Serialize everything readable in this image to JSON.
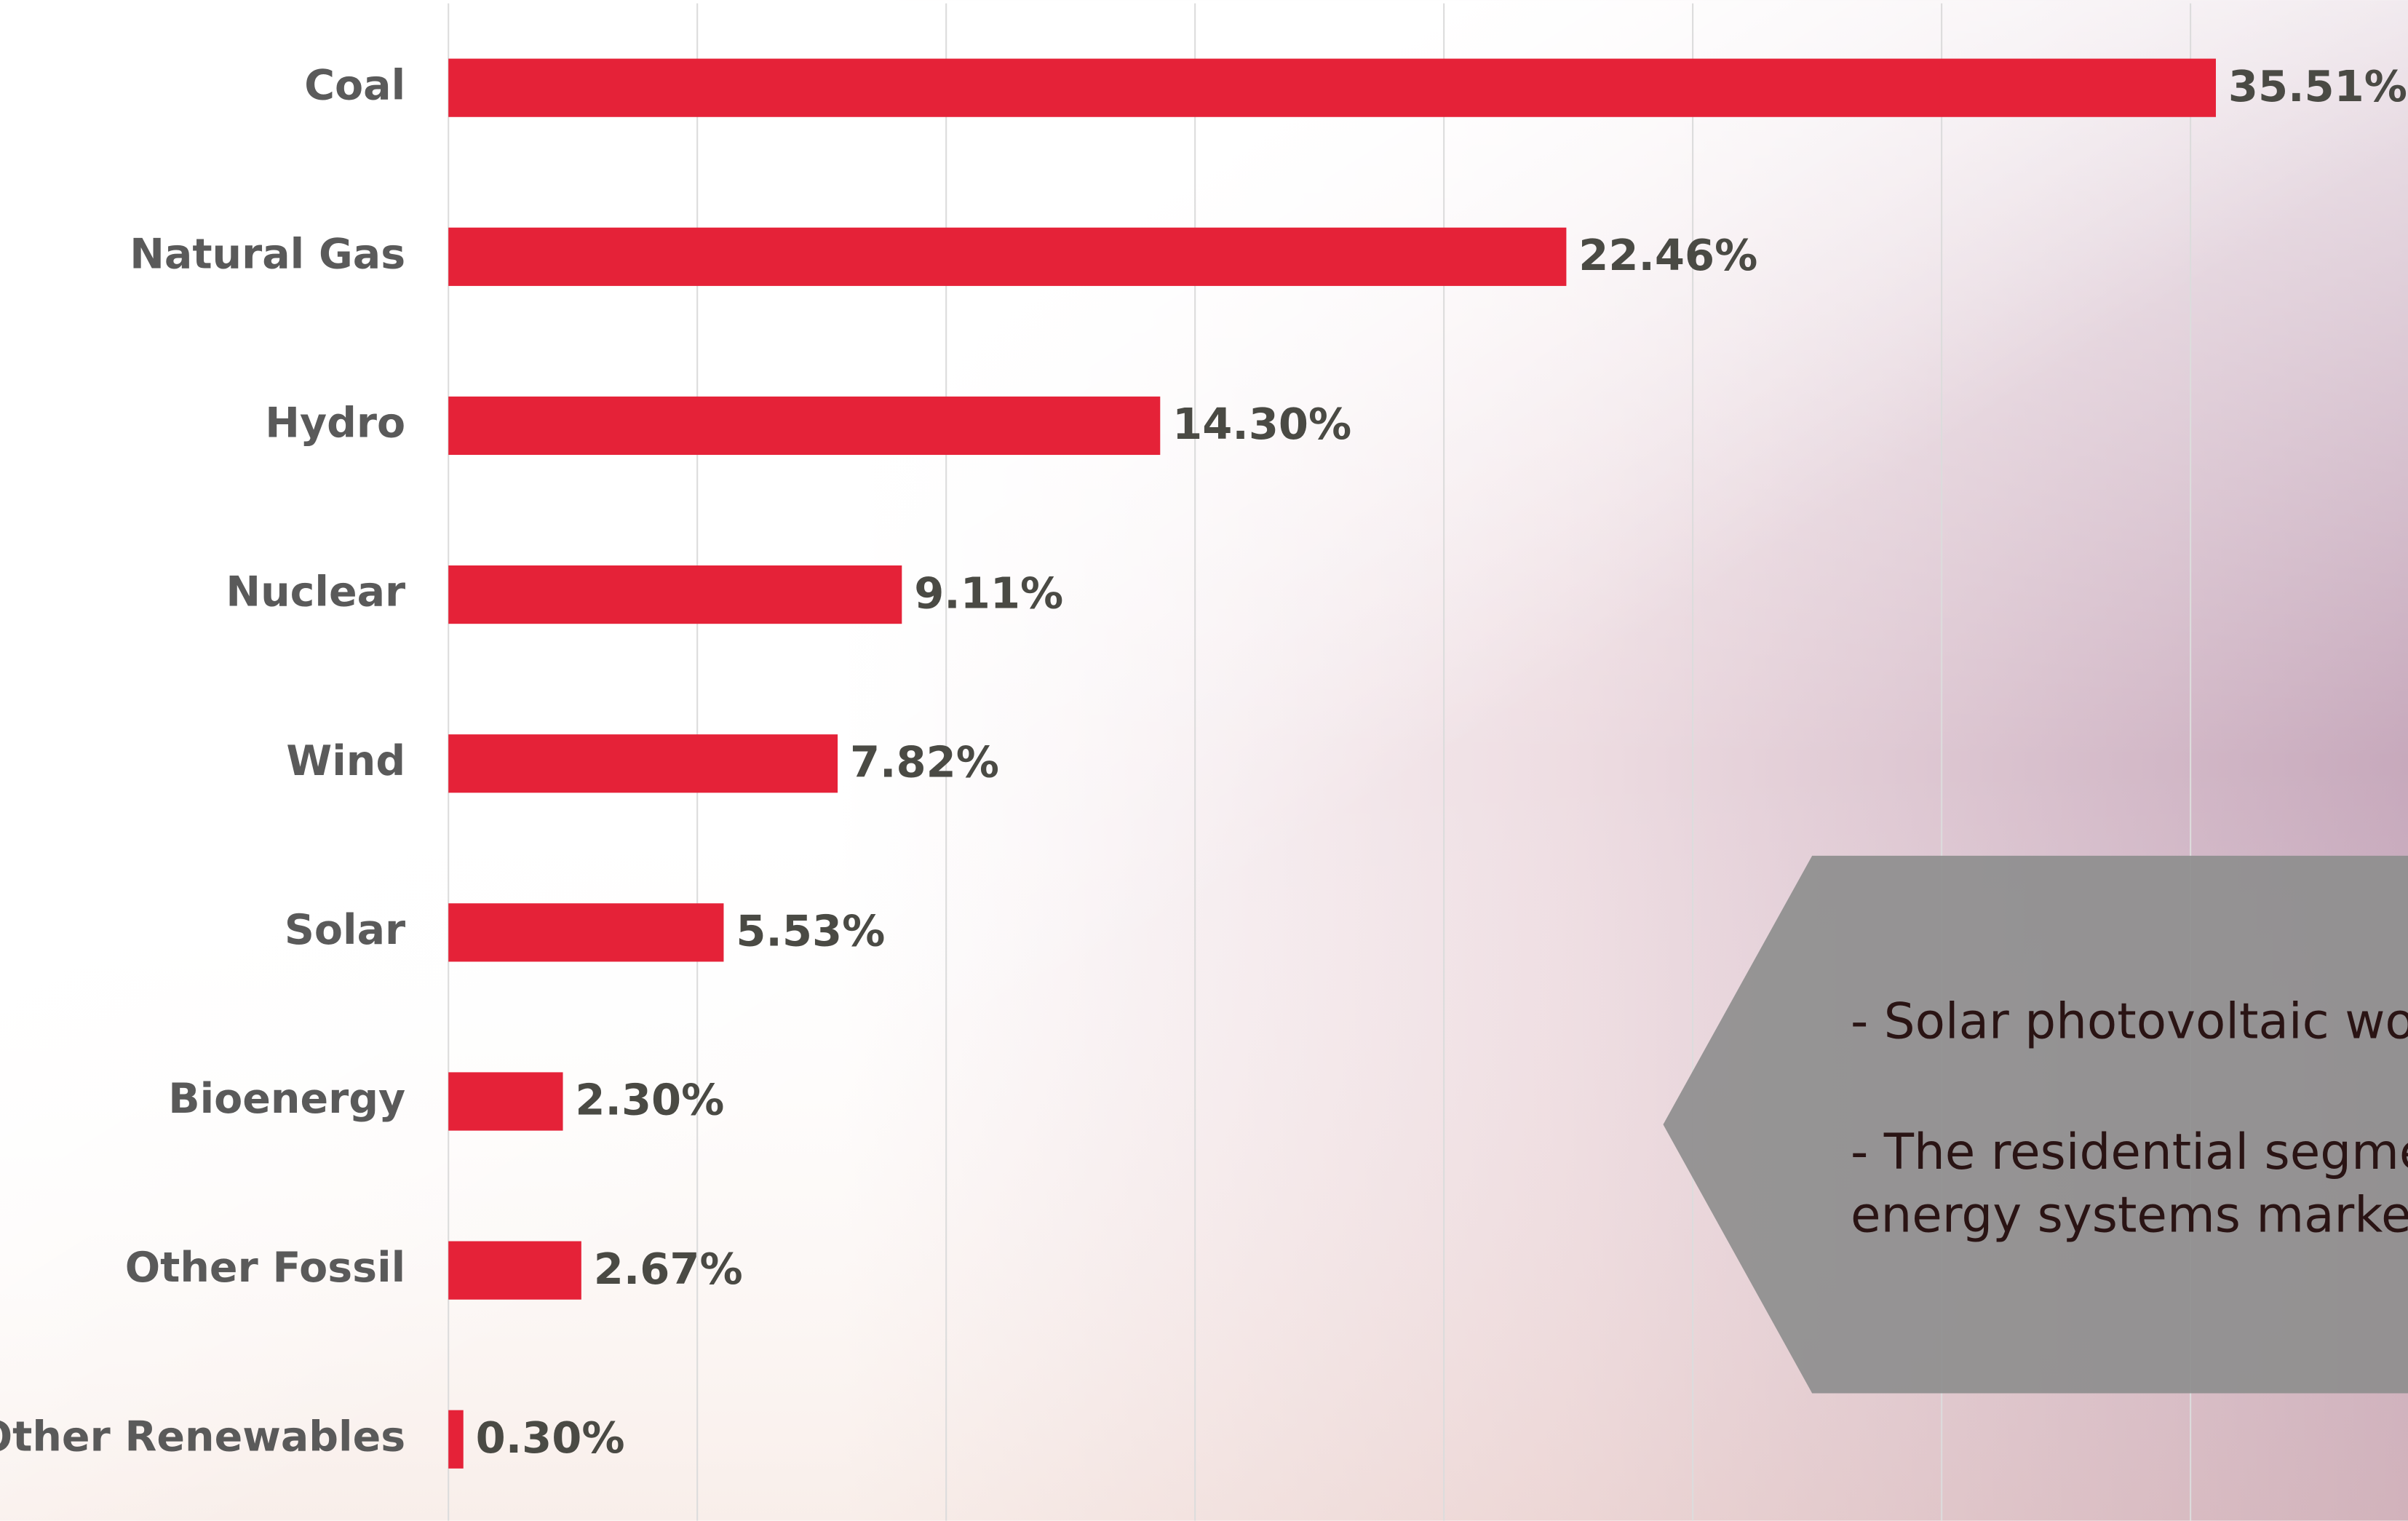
{
  "chart_data": {
    "type": "barh",
    "categories": [
      "Coal",
      "Natural Gas",
      "Hydro",
      "Nuclear",
      "Wind",
      "Solar",
      "Bioenergy",
      "Other Fossil",
      "Other Renewables"
    ],
    "values": [
      35.51,
      22.46,
      14.3,
      9.11,
      7.82,
      5.53,
      2.3,
      2.67,
      0.3
    ],
    "value_labels": [
      "35.51%",
      "22.46%",
      "14.30%",
      "9.11%",
      "7.82%",
      "5.53%",
      "2.30%",
      "2.67%",
      "0.30%"
    ],
    "color": "#e52238",
    "xlim": [
      0,
      39.37
    ],
    "gridlines": [
      0,
      5,
      10,
      15,
      20,
      25,
      30,
      35
    ],
    "annotations": [
      "- Solar photovoltaic wo",
      "- The residential segme",
      "energy systems marke"
    ]
  }
}
